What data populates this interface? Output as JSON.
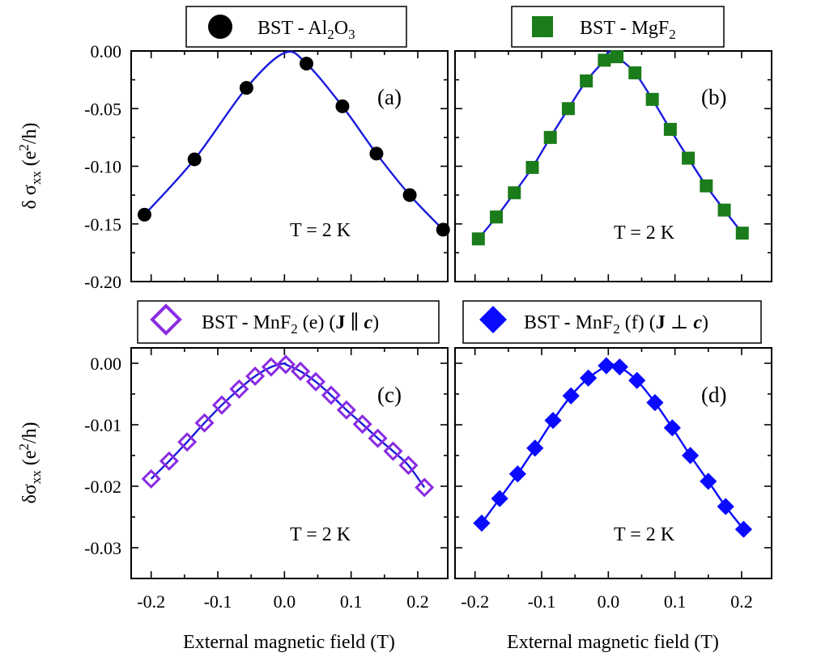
{
  "figure": {
    "xlabel": "External magnetic field (T)"
  },
  "chart_data": [
    {
      "type": "scatter",
      "panel": "(a)",
      "legend": {
        "prefix": "BST - Al",
        "sub1": "2",
        "mid": "O",
        "sub2": "3"
      },
      "annotation": "T = 2 K",
      "ylabel": {
        "prefix": "δ σ",
        "sub": "xx",
        "unit_open": " (e",
        "sup": "2",
        "unit_close": "/h)"
      },
      "xlim": [
        -0.23,
        0.245
      ],
      "ylim": [
        -0.2,
        0.0
      ],
      "yticks": [
        0.0,
        -0.05,
        -0.1,
        -0.15,
        -0.2
      ],
      "ytick_labels": [
        "0.00",
        "-0.05",
        "-0.10",
        "-0.15",
        "-0.20"
      ],
      "xticks": [
        -0.2,
        -0.1,
        0.0,
        0.1,
        0.2
      ],
      "marker": "circle",
      "marker_color": "#000000",
      "fit_color": "#1a1adc",
      "x": [
        -0.21,
        -0.135,
        -0.057,
        0.033,
        0.087,
        0.138,
        0.188,
        0.238
      ],
      "y": [
        -0.142,
        -0.094,
        -0.032,
        -0.011,
        -0.048,
        -0.089,
        -0.125,
        -0.155
      ]
    },
    {
      "type": "scatter",
      "panel": "(b)",
      "legend": {
        "prefix": "BST - MgF",
        "sub1": "2"
      },
      "annotation": "T = 2 K",
      "xlim": [
        -0.23,
        0.245
      ],
      "ylim": [
        -0.2,
        0.0
      ],
      "yticks": [
        0.0,
        -0.05,
        -0.1,
        -0.15,
        -0.2
      ],
      "xticks": [
        -0.2,
        -0.1,
        0.0,
        0.1,
        0.2
      ],
      "marker": "square",
      "marker_color": "#1a7c1a",
      "fit_color": "#1a1adc",
      "x": [
        -0.195,
        -0.168,
        -0.141,
        -0.114,
        -0.087,
        -0.06,
        -0.033,
        -0.006,
        0.013,
        0.04,
        0.066,
        0.093,
        0.12,
        0.147,
        0.174,
        0.201
      ],
      "y": [
        -0.163,
        -0.144,
        -0.123,
        -0.101,
        -0.075,
        -0.05,
        -0.026,
        -0.008,
        -0.005,
        -0.019,
        -0.042,
        -0.068,
        -0.093,
        -0.117,
        -0.138,
        -0.158
      ]
    },
    {
      "type": "scatter",
      "panel": "(c)",
      "legend": {
        "prefix": "BST - MnF",
        "sub1": "2",
        "after": " (e) (",
        "bold": "J",
        "rel": " ∥ ",
        "ital": "c",
        "close": ")"
      },
      "annotation": "T = 2 K",
      "ylabel": {
        "prefix": "δσ",
        "sub": "xx",
        "unit_open": " (e",
        "sup": "2",
        "unit_close": "/h)"
      },
      "xlim": [
        -0.23,
        0.245
      ],
      "ylim": [
        -0.035,
        0.0025
      ],
      "yticks": [
        0.0,
        -0.01,
        -0.02,
        -0.03
      ],
      "ytick_labels": [
        "0.00",
        "-0.01",
        "-0.02",
        "-0.03"
      ],
      "xticks": [
        -0.2,
        -0.1,
        0.0,
        0.1,
        0.2
      ],
      "xtick_labels": [
        "-0.2",
        "-0.1",
        "0.0",
        "0.1",
        "0.2"
      ],
      "marker": "diamond-open",
      "marker_color": "#8a2be2",
      "fit_color": "#1a1adc",
      "x": [
        -0.2,
        -0.173,
        -0.146,
        -0.12,
        -0.094,
        -0.068,
        -0.044,
        -0.02,
        0.002,
        0.024,
        0.047,
        0.07,
        0.093,
        0.117,
        0.14,
        0.163,
        0.186,
        0.21
      ],
      "y": [
        -0.0188,
        -0.0159,
        -0.0128,
        -0.0097,
        -0.0068,
        -0.0042,
        -0.0021,
        -0.0006,
        -0.0002,
        -0.0013,
        -0.003,
        -0.0052,
        -0.0076,
        -0.0099,
        -0.0122,
        -0.0143,
        -0.0166,
        -0.0202
      ]
    },
    {
      "type": "scatter",
      "panel": "(d)",
      "legend": {
        "prefix": "BST - MnF",
        "sub1": "2",
        "after": " (f) (",
        "bold": "J",
        "rel": " ⊥ ",
        "ital": "c",
        "close": ")"
      },
      "annotation": "T = 2 K",
      "xlim": [
        -0.23,
        0.245
      ],
      "ylim": [
        -0.035,
        0.0025
      ],
      "yticks": [
        0.0,
        -0.01,
        -0.02,
        -0.03
      ],
      "xticks": [
        -0.2,
        -0.1,
        0.0,
        0.1,
        0.2
      ],
      "xtick_labels": [
        "-0.2",
        "-0.1",
        "0.0",
        "0.1",
        "0.2"
      ],
      "marker": "diamond-filled",
      "marker_color": "#0a0aff",
      "fit_color": "#0a0aff",
      "x": [
        -0.19,
        -0.163,
        -0.136,
        -0.11,
        -0.083,
        -0.056,
        -0.03,
        -0.003,
        0.017,
        0.043,
        0.07,
        0.096,
        0.123,
        0.15,
        0.176,
        0.203
      ],
      "y": [
        -0.026,
        -0.022,
        -0.018,
        -0.0138,
        -0.0093,
        -0.0053,
        -0.0024,
        -0.0004,
        -0.0006,
        -0.0028,
        -0.0064,
        -0.0105,
        -0.015,
        -0.0192,
        -0.0233,
        -0.027
      ]
    }
  ]
}
